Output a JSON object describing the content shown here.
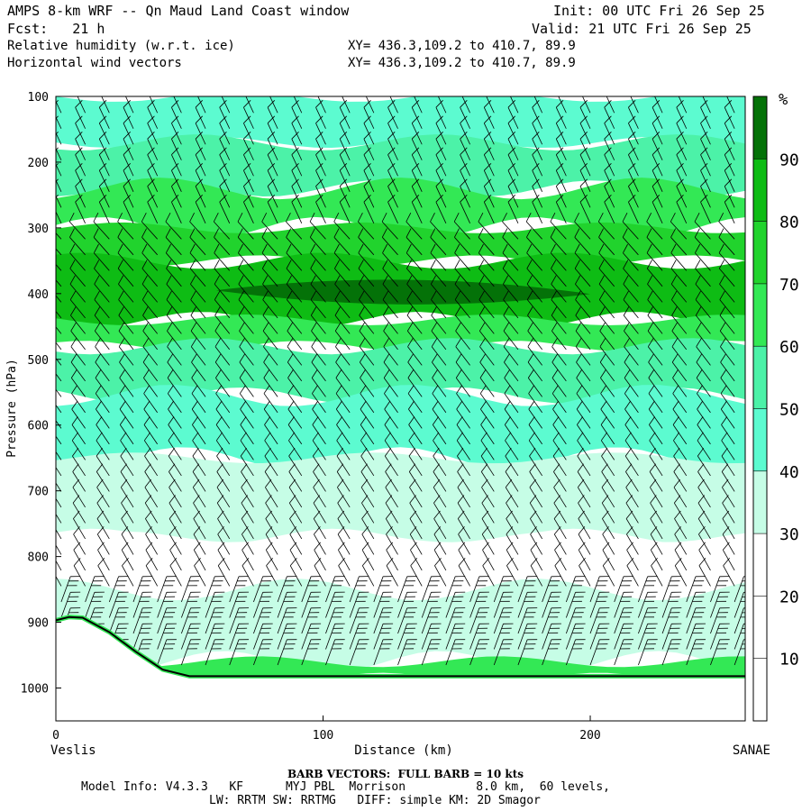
{
  "header": {
    "title": "AMPS 8-km WRF -- Qn Maud Land Coast window",
    "init": "Init: 00 UTC Fri 26 Sep 25",
    "fcst": "Fcst:   21 h",
    "valid": "Valid: 21 UTC Fri 26 Sep 25",
    "field1": "Relative humidity (w.r.t. ice)",
    "xy1": "XY= 436.3,109.2 to 410.7, 89.9",
    "field2": "Horizontal wind vectors",
    "xy2": "XY= 436.3,109.2 to 410.7, 89.9"
  },
  "footer": {
    "barb_note": "BARB VECTORS:  FULL BARB = 10 kts",
    "model_line1": "Model Info: V4.3.3   KF      MYJ PBL  Morrison          8.0 km,  60 levels,",
    "model_line2": "LW: RRTM SW: RRTMG   DIFF: simple KM: 2D Smagor"
  },
  "colors": {
    "rh_0_30": "#ffffff",
    "rh_30_40": "#c6fde6",
    "rh_40_50": "#5cfbd0",
    "rh_50_60": "#4cf2a8",
    "rh_60_70": "#33e855",
    "rh_70_80": "#21d32d",
    "rh_80_90": "#0ebc14",
    "rh_90_100": "#047208",
    "terrain": "#000000"
  },
  "chart_data": {
    "type": "heatmap",
    "title": "Relative humidity (w.r.t. ice)",
    "xlabel": "Distance (km)",
    "ylabel": "Pressure (hPa)",
    "x_ticks": [
      0,
      100,
      200
    ],
    "y_ticks": [
      100,
      200,
      300,
      400,
      500,
      600,
      700,
      800,
      900,
      1000
    ],
    "xlim": [
      0,
      258
    ],
    "ylim": [
      1050,
      100
    ],
    "x_start_label": "Veslis",
    "x_end_label": "SANAE",
    "colorbar": {
      "unit": "%",
      "levels": [
        10,
        20,
        30,
        40,
        50,
        60,
        70,
        80,
        90
      ],
      "colors": [
        "#ffffff",
        "#ffffff",
        "#ffffff",
        "#c6fde6",
        "#5cfbd0",
        "#4cf2a8",
        "#33e855",
        "#21d32d",
        "#0ebc14",
        "#047208"
      ]
    },
    "rh_layers": [
      {
        "p_top": 100,
        "p_bot": 170,
        "rh_band": "40-50"
      },
      {
        "p_top": 170,
        "p_bot": 240,
        "rh_band": "50-60"
      },
      {
        "p_top": 240,
        "p_bot": 300,
        "rh_band": "60-70"
      },
      {
        "p_top": 300,
        "p_bot": 350,
        "rh_band": "70-80"
      },
      {
        "p_top": 350,
        "p_bot": 440,
        "rh_band": "80-90"
      },
      {
        "p_top": 370,
        "p_bot": 420,
        "rh_band": "90-100"
      },
      {
        "p_top": 440,
        "p_bot": 480,
        "rh_band": "60-70"
      },
      {
        "p_top": 480,
        "p_bot": 555,
        "rh_band": "50-60"
      },
      {
        "p_top": 555,
        "p_bot": 650,
        "rh_band": "40-50"
      },
      {
        "p_top": 650,
        "p_bot": 770,
        "rh_band": "30-40"
      },
      {
        "p_top": 770,
        "p_bot": 850,
        "rh_band": "0-30"
      },
      {
        "p_top": 850,
        "p_bot": 960,
        "rh_band": "30-40"
      },
      {
        "p_top": 960,
        "p_bot": 985,
        "rh_band": "60-70"
      }
    ],
    "terrain": {
      "x_km": [
        0,
        5,
        10,
        20,
        30,
        40,
        50,
        258
      ],
      "p_hpa": [
        897,
        892,
        893,
        915,
        945,
        972,
        982,
        982
      ]
    },
    "wind_barbs": "horizontal wind barbs plotted on a grid of columns every ~9 km; full barb = 10 kts"
  }
}
